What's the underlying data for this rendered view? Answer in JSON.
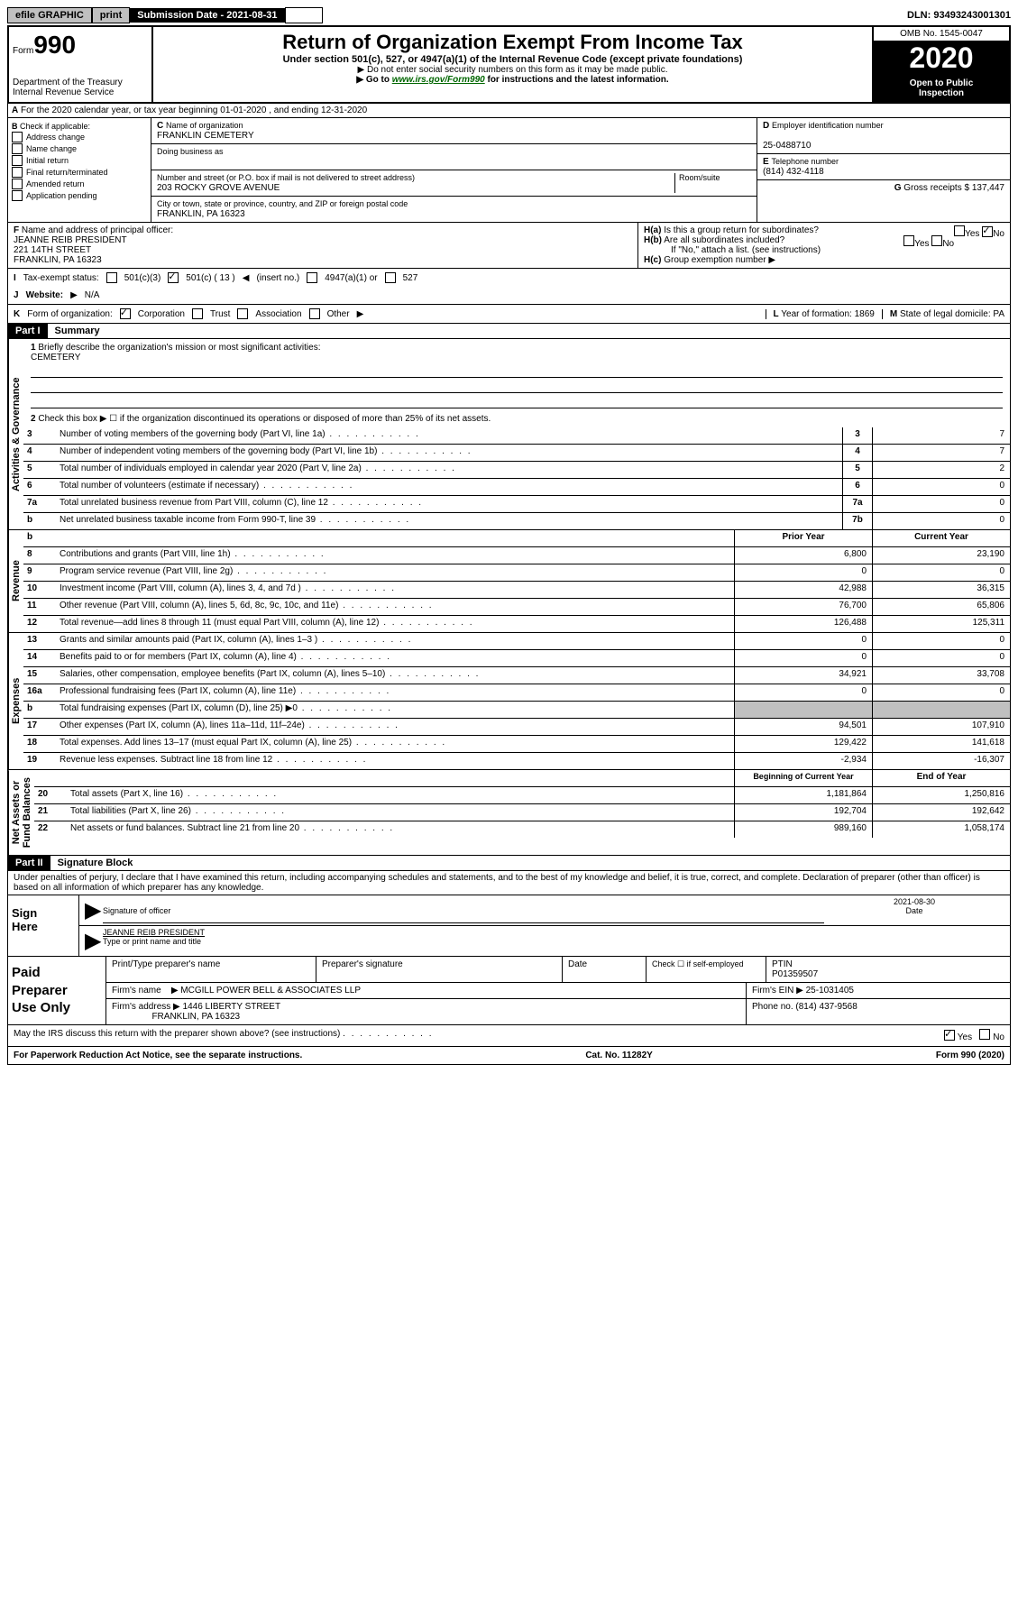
{
  "top": {
    "efile": "efile GRAPHIC",
    "print": "print",
    "submission_label": "Submission Date - 2021-08-31",
    "dln": "DLN: 93493243001301"
  },
  "header": {
    "form_prefix": "Form",
    "form_number": "990",
    "dept": "Department of the Treasury\nInternal Revenue Service",
    "title": "Return of Organization Exempt From Income Tax",
    "sub1": "Under section 501(c), 527, or 4947(a)(1) of the Internal Revenue Code (except private foundations)",
    "sub2": "Do not enter social security numbers on this form as it may be made public.",
    "sub3_pre": "Go to ",
    "sub3_link": "www.irs.gov/Form990",
    "sub3_post": " for instructions and the latest information.",
    "omb": "OMB No. 1545-0047",
    "year": "2020",
    "open": "Open to Public\nInspection"
  },
  "section_a": "For the 2020 calendar year, or tax year beginning 01-01-2020   , and ending 12-31-2020",
  "box_b": {
    "label": "Check if applicable:",
    "items": [
      "Address change",
      "Name change",
      "Initial return",
      "Final return/terminated",
      "Amended return",
      "Application pending"
    ]
  },
  "box_c": {
    "name_label": "Name of organization",
    "name": "FRANKLIN CEMETERY",
    "dba_label": "Doing business as",
    "addr_label": "Number and street (or P.O. box if mail is not delivered to street address)",
    "room_label": "Room/suite",
    "addr": "203 ROCKY GROVE AVENUE",
    "city_label": "City or town, state or province, country, and ZIP or foreign postal code",
    "city": "FRANKLIN, PA  16323"
  },
  "box_d": {
    "label": "Employer identification number",
    "value": "25-0488710"
  },
  "box_e": {
    "label": "Telephone number",
    "value": "(814) 432-4118"
  },
  "box_g": {
    "label": "Gross receipts $",
    "value": "137,447"
  },
  "box_f": {
    "label": "Name and address of principal officer:",
    "name": "JEANNE REIB PRESIDENT",
    "addr1": "221 14TH STREET",
    "addr2": "FRANKLIN, PA  16323"
  },
  "box_h": {
    "ha": "Is this a group return for subordinates?",
    "hb": "Are all subordinates included?",
    "hb_note": "If \"No,\" attach a list. (see instructions)",
    "hc": "Group exemption number"
  },
  "tax_exempt": {
    "label": "Tax-exempt status:",
    "c3": "501(c)(3)",
    "c": "501(c) ( 13 )",
    "insert": "(insert no.)",
    "a1": "4947(a)(1) or",
    "s527": "527"
  },
  "website": {
    "label": "Website:",
    "value": "N/A"
  },
  "box_k": {
    "label": "Form of organization:",
    "opts": [
      "Corporation",
      "Trust",
      "Association",
      "Other"
    ]
  },
  "box_l": {
    "label": "Year of formation:",
    "value": "1869"
  },
  "box_m": {
    "label": "State of legal domicile:",
    "value": "PA"
  },
  "part1": {
    "tag": "Part I",
    "title": "Summary",
    "q1": "Briefly describe the organization's mission or most significant activities:",
    "mission": "CEMETERY",
    "q2": "Check this box ▶ ☐  if the organization discontinued its operations or disposed of more than 25% of its net assets.",
    "vert_gov": "Activities & Governance",
    "vert_rev": "Revenue",
    "vert_exp": "Expenses",
    "vert_net": "Net Assets or\nFund Balances",
    "col_prior": "Prior Year",
    "col_current": "Current Year",
    "col_begin": "Beginning of Current Year",
    "col_end": "End of Year",
    "lines_gov": [
      {
        "n": "3",
        "t": "Number of voting members of the governing body (Part VI, line 1a)",
        "b": "3",
        "v": "7"
      },
      {
        "n": "4",
        "t": "Number of independent voting members of the governing body (Part VI, line 1b)",
        "b": "4",
        "v": "7"
      },
      {
        "n": "5",
        "t": "Total number of individuals employed in calendar year 2020 (Part V, line 2a)",
        "b": "5",
        "v": "2"
      },
      {
        "n": "6",
        "t": "Total number of volunteers (estimate if necessary)",
        "b": "6",
        "v": "0"
      },
      {
        "n": "7a",
        "t": "Total unrelated business revenue from Part VIII, column (C), line 12",
        "b": "7a",
        "v": "0"
      },
      {
        "n": "b",
        "t": "Net unrelated business taxable income from Form 990-T, line 39",
        "b": "7b",
        "v": "0"
      }
    ],
    "lines_rev": [
      {
        "n": "8",
        "t": "Contributions and grants (Part VIII, line 1h)",
        "p": "6,800",
        "c": "23,190"
      },
      {
        "n": "9",
        "t": "Program service revenue (Part VIII, line 2g)",
        "p": "0",
        "c": "0"
      },
      {
        "n": "10",
        "t": "Investment income (Part VIII, column (A), lines 3, 4, and 7d )",
        "p": "42,988",
        "c": "36,315"
      },
      {
        "n": "11",
        "t": "Other revenue (Part VIII, column (A), lines 5, 6d, 8c, 9c, 10c, and 11e)",
        "p": "76,700",
        "c": "65,806"
      },
      {
        "n": "12",
        "t": "Total revenue—add lines 8 through 11 (must equal Part VIII, column (A), line 12)",
        "p": "126,488",
        "c": "125,311"
      }
    ],
    "lines_exp": [
      {
        "n": "13",
        "t": "Grants and similar amounts paid (Part IX, column (A), lines 1–3 )",
        "p": "0",
        "c": "0"
      },
      {
        "n": "14",
        "t": "Benefits paid to or for members (Part IX, column (A), line 4)",
        "p": "0",
        "c": "0"
      },
      {
        "n": "15",
        "t": "Salaries, other compensation, employee benefits (Part IX, column (A), lines 5–10)",
        "p": "34,921",
        "c": "33,708"
      },
      {
        "n": "16a",
        "t": "Professional fundraising fees (Part IX, column (A), line 11e)",
        "p": "0",
        "c": "0"
      },
      {
        "n": "b",
        "t": "Total fundraising expenses (Part IX, column (D), line 25) ▶0",
        "p": "",
        "c": ""
      },
      {
        "n": "17",
        "t": "Other expenses (Part IX, column (A), lines 11a–11d, 11f–24e)",
        "p": "94,501",
        "c": "107,910"
      },
      {
        "n": "18",
        "t": "Total expenses. Add lines 13–17 (must equal Part IX, column (A), line 25)",
        "p": "129,422",
        "c": "141,618"
      },
      {
        "n": "19",
        "t": "Revenue less expenses. Subtract line 18 from line 12",
        "p": "-2,934",
        "c": "-16,307"
      }
    ],
    "lines_net": [
      {
        "n": "20",
        "t": "Total assets (Part X, line 16)",
        "p": "1,181,864",
        "c": "1,250,816"
      },
      {
        "n": "21",
        "t": "Total liabilities (Part X, line 26)",
        "p": "192,704",
        "c": "192,642"
      },
      {
        "n": "22",
        "t": "Net assets or fund balances. Subtract line 21 from line 20",
        "p": "989,160",
        "c": "1,058,174"
      }
    ]
  },
  "part2": {
    "tag": "Part II",
    "title": "Signature Block",
    "declaration": "Under penalties of perjury, I declare that I have examined this return, including accompanying schedules and statements, and to the best of my knowledge and belief, it is true, correct, and complete. Declaration of preparer (other than officer) is based on all information of which preparer has any knowledge."
  },
  "sign": {
    "left": "Sign\nHere",
    "sig_label": "Signature of officer",
    "date": "2021-08-30",
    "date_label": "Date",
    "name": "JEANNE REIB PRESIDENT",
    "name_label": "Type or print name and title"
  },
  "preparer": {
    "left": "Paid\nPreparer\nUse Only",
    "h1": "Print/Type preparer's name",
    "h2": "Preparer's signature",
    "h3": "Date",
    "h4_check": "Check ☐ if self-employed",
    "h5": "PTIN",
    "ptin": "P01359507",
    "firm_label": "Firm's name",
    "firm": "MCGILL POWER BELL & ASSOCIATES LLP",
    "ein_label": "Firm's EIN ▶",
    "ein": "25-1031405",
    "addr_label": "Firm's address ▶",
    "addr": "1446 LIBERTY STREET",
    "addr2": "FRANKLIN, PA  16323",
    "phone_label": "Phone no.",
    "phone": "(814) 437-9568"
  },
  "discuss": {
    "text": "May the IRS discuss this return with the preparer shown above? (see instructions)",
    "yes": "Yes",
    "no": "No"
  },
  "footer": {
    "left": "For Paperwork Reduction Act Notice, see the separate instructions.",
    "mid": "Cat. No. 11282Y",
    "right": "Form 990 (2020)"
  }
}
